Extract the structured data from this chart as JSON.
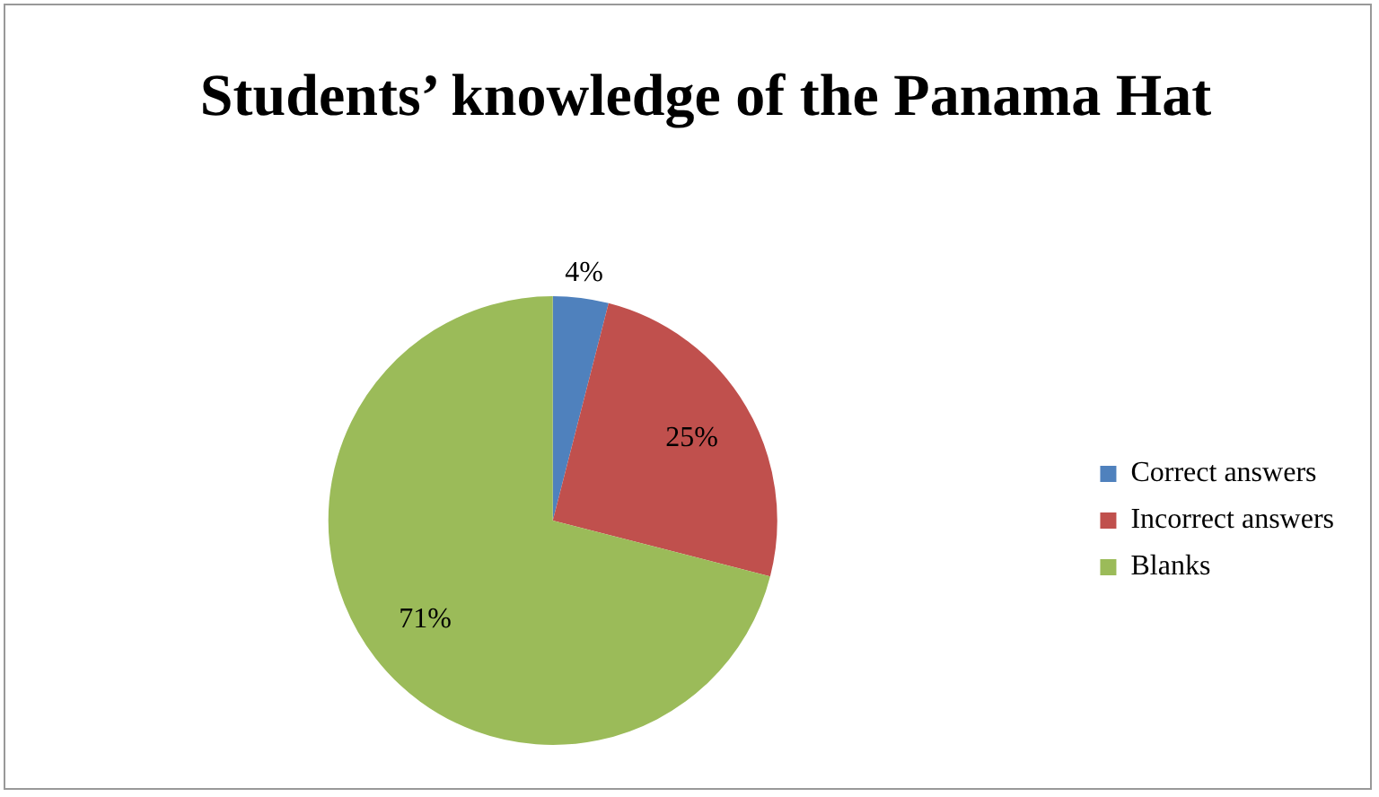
{
  "chart_data": {
    "type": "pie",
    "title": "Students’ knowledge of the Panama Hat",
    "categories": [
      "Correct answers",
      "Incorrect answers",
      "Blanks"
    ],
    "values": [
      4,
      25,
      71
    ],
    "colors": [
      "#4f81bd",
      "#c0504d",
      "#9bbb59"
    ],
    "value_labels": [
      "4%",
      "25%",
      "71%"
    ],
    "legend": "right"
  }
}
